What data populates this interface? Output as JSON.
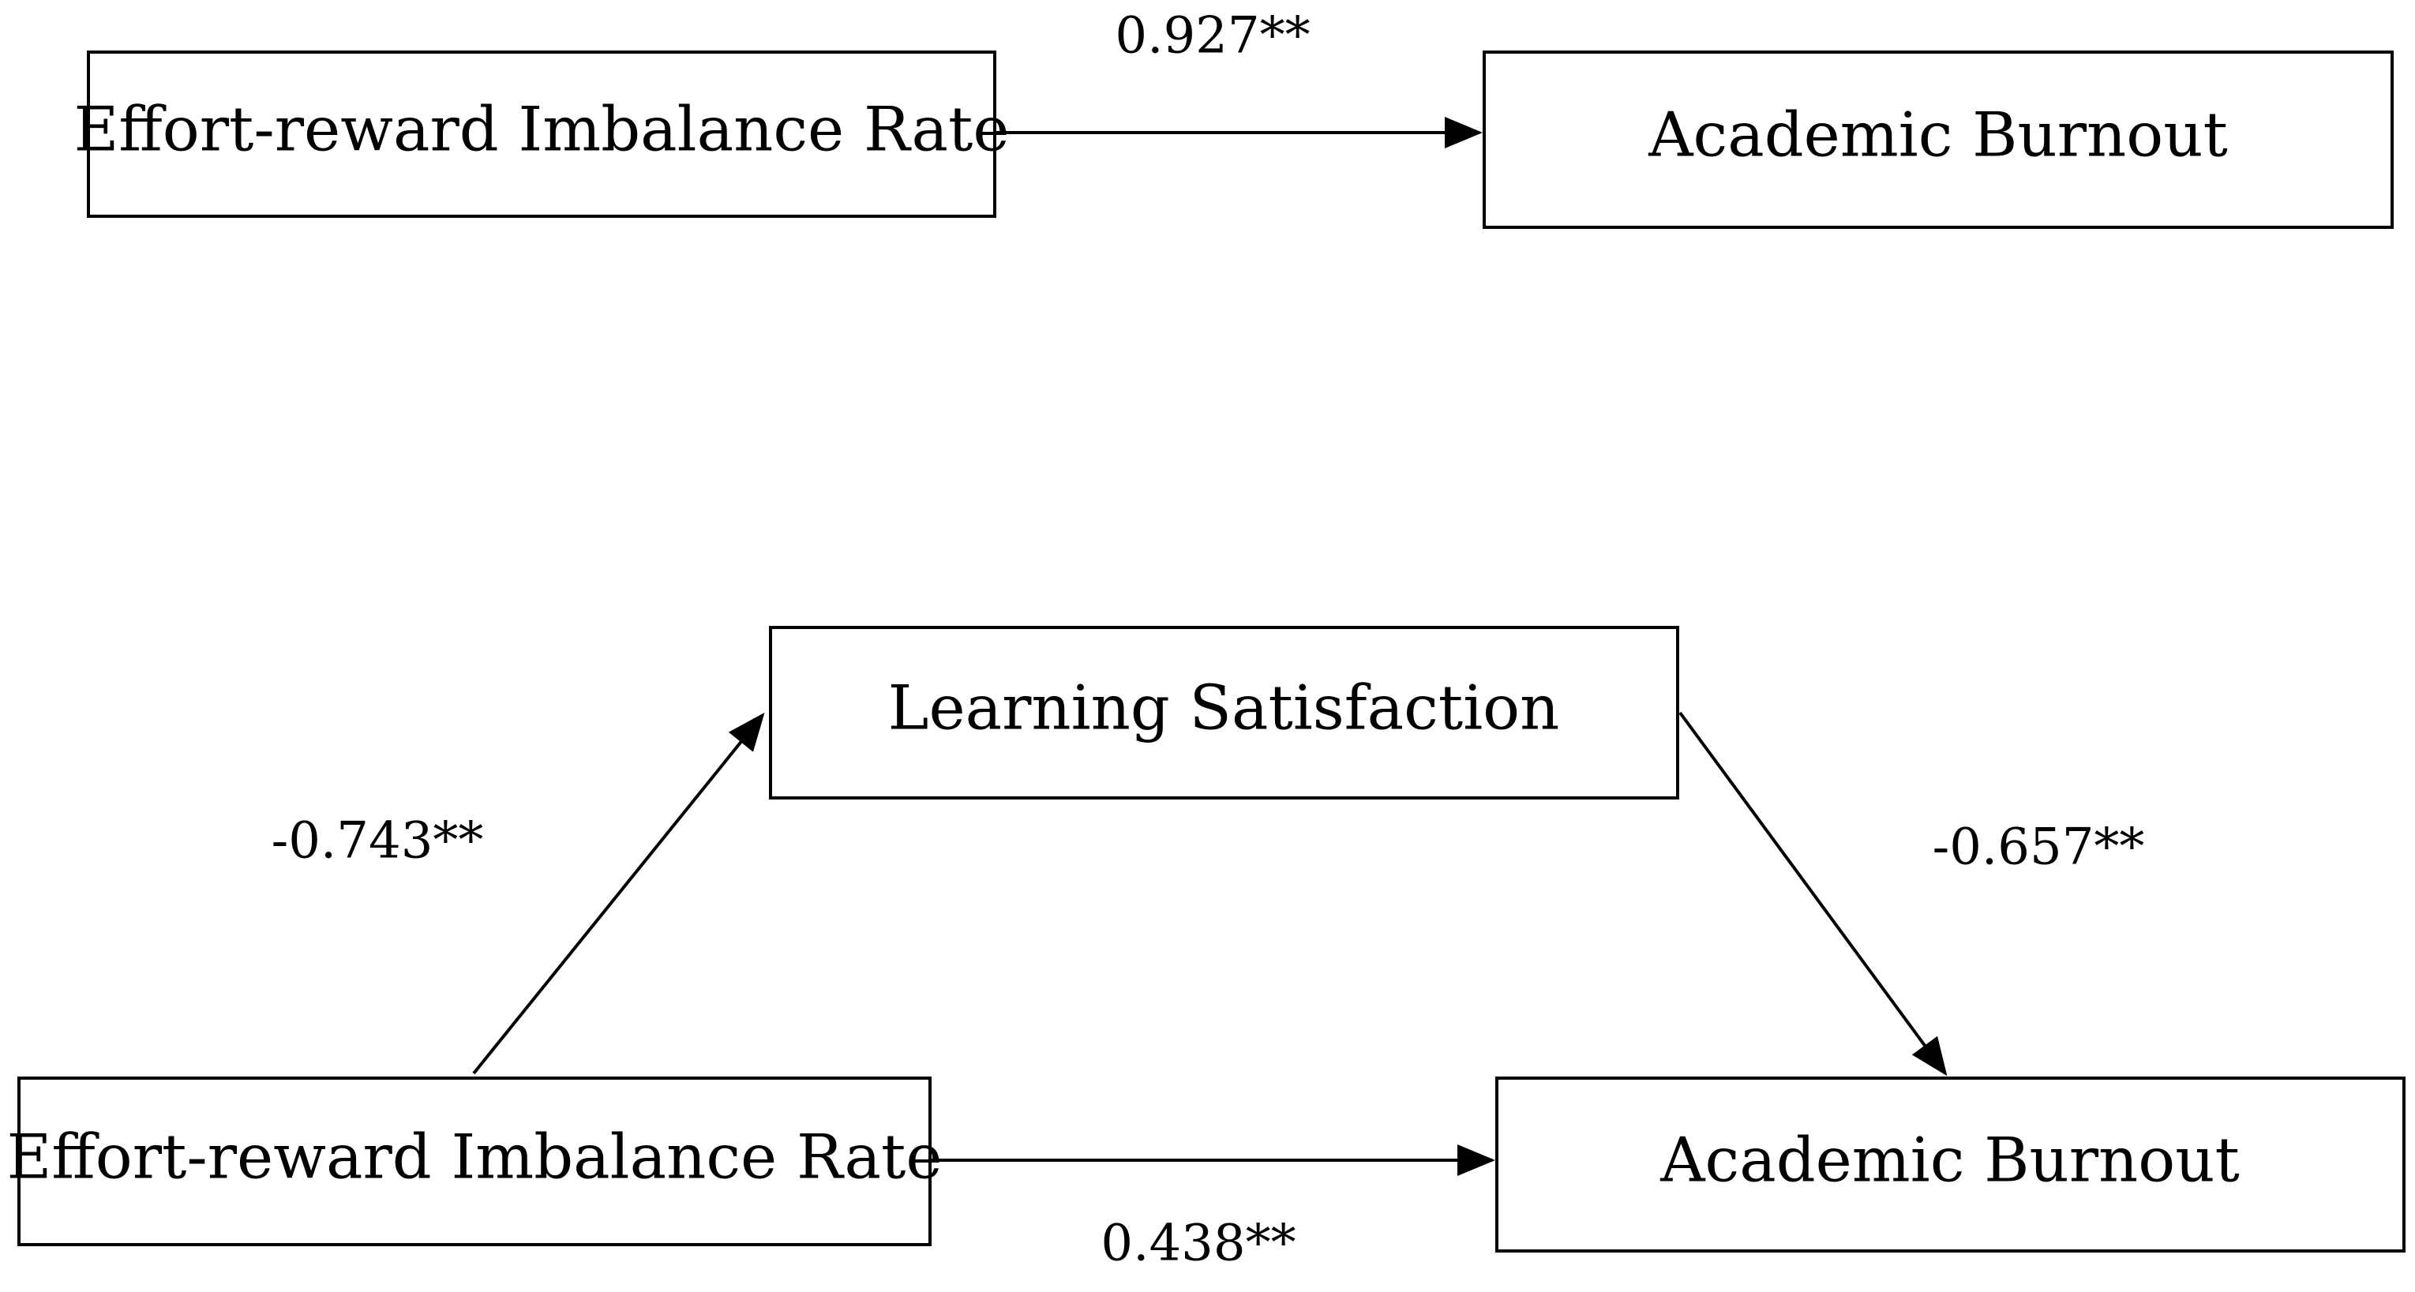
{
  "top_model": {
    "predictor": "Effort-reward Imbalance Rate",
    "outcome": "Academic Burnout",
    "total_effect": "0.927**"
  },
  "bottom_model": {
    "predictor": "Effort-reward Imbalance Rate",
    "mediator": "Learning Satisfaction",
    "outcome": "Academic Burnout",
    "path_a": "-0.743**",
    "path_b": "-0.657**",
    "direct_effect": "0.438**"
  },
  "colors": {
    "line": "#000000",
    "box_fill": "#ffffff",
    "background": "#ffffff"
  }
}
